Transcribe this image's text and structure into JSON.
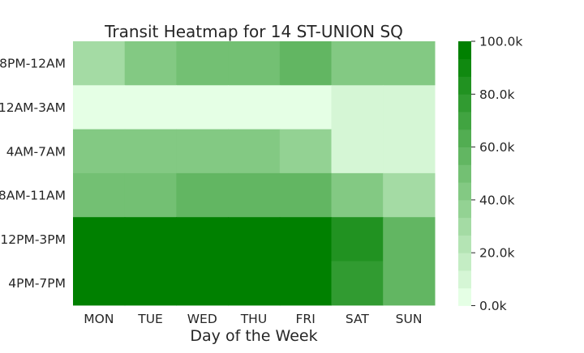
{
  "chart_data": {
    "type": "heatmap",
    "title": "Transit Heatmap for 14 ST-UNION SQ",
    "xlabel": "Day of the Week",
    "ylabel": "",
    "columns": [
      "MON",
      "TUE",
      "WED",
      "THU",
      "FRI",
      "SAT",
      "SUN"
    ],
    "rows": [
      "8PM-12AM",
      "12AM-3AM",
      "4AM-7AM",
      "8AM-11AM",
      "12PM-3PM",
      "4PM-7PM"
    ],
    "values": [
      [
        30000,
        45000,
        50000,
        50000,
        55000,
        45000,
        45000
      ],
      [
        0,
        0,
        0,
        0,
        0,
        10000,
        10000
      ],
      [
        40000,
        40000,
        40000,
        40000,
        35000,
        10000,
        10000
      ],
      [
        50000,
        50000,
        55000,
        55000,
        55000,
        40000,
        30000
      ],
      [
        100000,
        100000,
        100000,
        100000,
        100000,
        80000,
        55000
      ],
      [
        100000,
        100000,
        100000,
        100000,
        100000,
        75000,
        55000
      ]
    ],
    "colorbar": {
      "min": 0,
      "max": 100000,
      "levels": 15,
      "ticks": [
        "0.0k",
        "20.0k",
        "40.0k",
        "60.0k",
        "80.0k",
        "100.0k"
      ],
      "color_low": "#e5ffe5",
      "color_high": "#008000"
    }
  }
}
